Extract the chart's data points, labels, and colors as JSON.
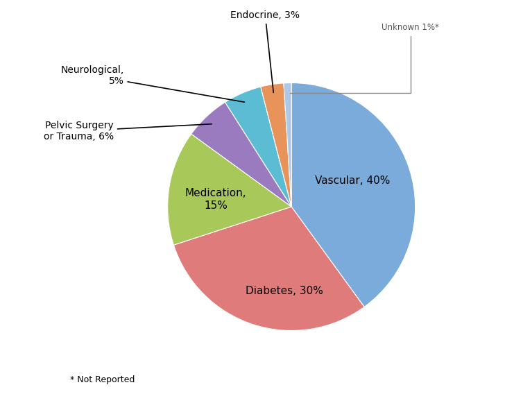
{
  "labels": [
    "Vascular",
    "Diabetes",
    "Medication",
    "Pelvic Surgery or Trauma",
    "Neurological",
    "Endocrine",
    "Unknown"
  ],
  "values": [
    40,
    30,
    15,
    6,
    5,
    3,
    1
  ],
  "colors": [
    "#7aabdb",
    "#e07b7b",
    "#a8c85a",
    "#9b7bbf",
    "#5bbcd4",
    "#e8935a",
    "#b0c8e8"
  ],
  "footnote": "* Not Reported",
  "startangle": 90,
  "background_color": "#ffffff"
}
